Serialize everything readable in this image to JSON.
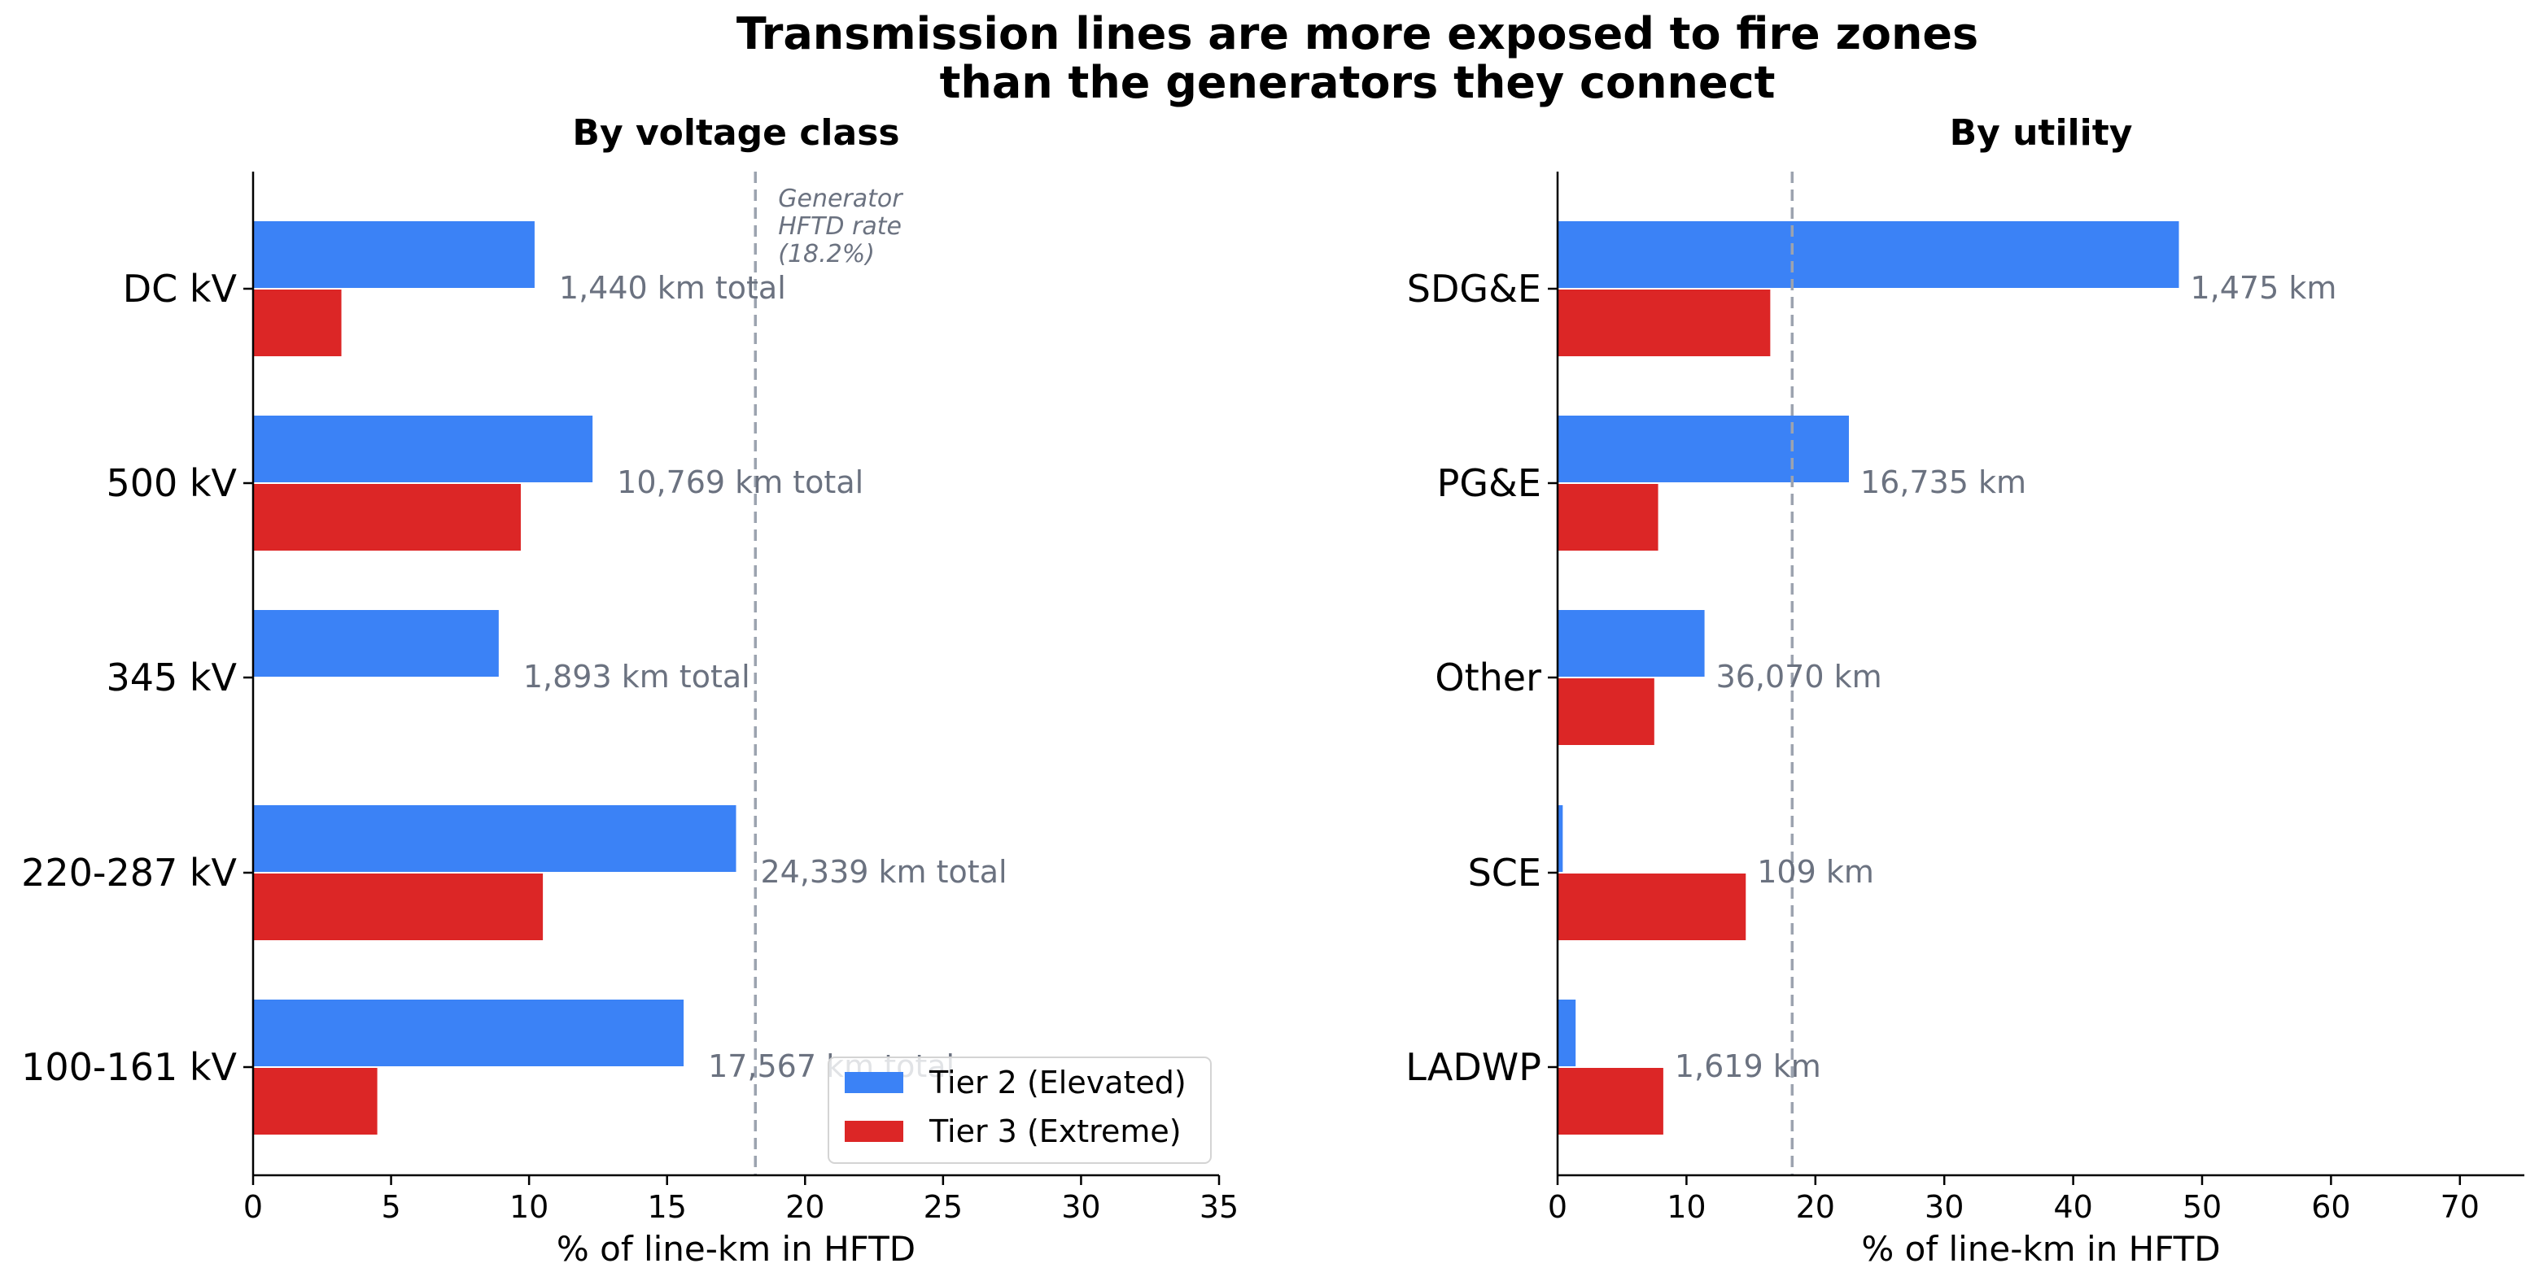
{
  "title_line1": "Transmission lines are more exposed to fire zones",
  "title_line2": "than the generators they connect",
  "colors": {
    "tier2": "#3b82f6",
    "tier3": "#dc2626",
    "reference": "#9ca3af",
    "note": "#6b7280"
  },
  "legend": {
    "tier2": "Tier 2 (Elevated)",
    "tier3": "Tier 3 (Extreme)",
    "placement": "lower-right of left panel"
  },
  "chart_data": [
    {
      "type": "bar",
      "orientation": "horizontal",
      "title": "By voltage class",
      "xlabel": "% of line-km in HFTD",
      "xlim": [
        0,
        35
      ],
      "xticks": [
        "0",
        "5",
        "10",
        "15",
        "20",
        "25",
        "30",
        "35"
      ],
      "xtick_values": [
        0,
        5,
        10,
        15,
        20,
        25,
        30,
        35
      ],
      "categories": [
        "DC kV",
        "500 kV",
        "345 kV",
        "220-287 kV",
        "100-161 kV"
      ],
      "series": [
        {
          "name": "Tier 2 (Elevated)",
          "values": [
            10.2,
            12.3,
            8.9,
            17.5,
            15.6
          ]
        },
        {
          "name": "Tier 3 (Extreme)",
          "values": [
            3.2,
            9.7,
            0,
            10.5,
            4.5
          ]
        }
      ],
      "annotations": [
        "1,440 km total",
        "10,769 km total",
        "1,893 km total",
        "24,339 km total",
        "17,567 km total"
      ],
      "reference_line": {
        "x": 18.2,
        "label_lines": [
          "Generator",
          "HFTD rate",
          "(18.2%)"
        ]
      },
      "grid": false
    },
    {
      "type": "bar",
      "orientation": "horizontal",
      "title": "By utility",
      "xlabel": "% of line-km in HFTD",
      "xlim": [
        0,
        75
      ],
      "xticks": [
        "0",
        "10",
        "20",
        "30",
        "40",
        "50",
        "60",
        "70"
      ],
      "xtick_values": [
        0,
        10,
        20,
        30,
        40,
        50,
        60,
        70
      ],
      "categories": [
        "SDG&E",
        "PG&E",
        "Other",
        "SCE",
        "LADWP"
      ],
      "series": [
        {
          "name": "Tier 2 (Elevated)",
          "values": [
            48.2,
            22.6,
            11.4,
            0.4,
            1.4
          ]
        },
        {
          "name": "Tier 3 (Extreme)",
          "values": [
            16.5,
            7.8,
            7.5,
            14.6,
            8.2
          ]
        }
      ],
      "annotations": [
        "1,475 km",
        "16,735 km",
        "36,070 km",
        "109 km",
        "1,619 km"
      ],
      "reference_line": {
        "x": 18.2
      },
      "grid": false
    }
  ]
}
